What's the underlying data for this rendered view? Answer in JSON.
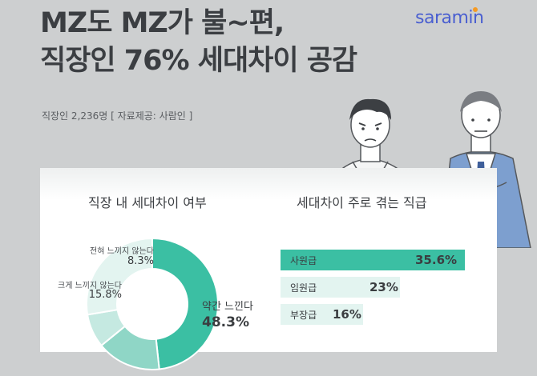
{
  "header": {
    "title_line1": "MZ도 MZ가 불~편,",
    "title_line2": "직장인 76% 세대차이 공감",
    "subtitle": "직장인 2,236명 [ 자료제공: 사람인 ]",
    "logo": "saramin"
  },
  "colors": {
    "accent": "#3bbfa3",
    "accent_mid": "#8fd6c6",
    "accent_light": "#c5e9e1",
    "accent_pale": "#e3f4f0",
    "logo": "#4a5fd0"
  },
  "chart_data": [
    {
      "type": "pie",
      "title": "직장 내 세대차이 여부",
      "slices": [
        {
          "label": "약간 느낀다",
          "value": 48.3,
          "value_text": "48.3%"
        },
        {
          "label": "크게 느끼지 않는다",
          "value": 15.8,
          "value_text": "15.8%"
        },
        {
          "label": "전혀 느끼지 않는다",
          "value": 8.3,
          "value_text": "8.3%"
        }
      ]
    },
    {
      "type": "bar",
      "orientation": "horizontal",
      "title": "세대차이 주로 겪는 직급",
      "categories": [
        "사원급",
        "임원급",
        "부장급"
      ],
      "values": [
        35.6,
        23,
        16
      ],
      "value_texts": [
        "35.6%",
        "23%",
        "16%"
      ]
    }
  ]
}
